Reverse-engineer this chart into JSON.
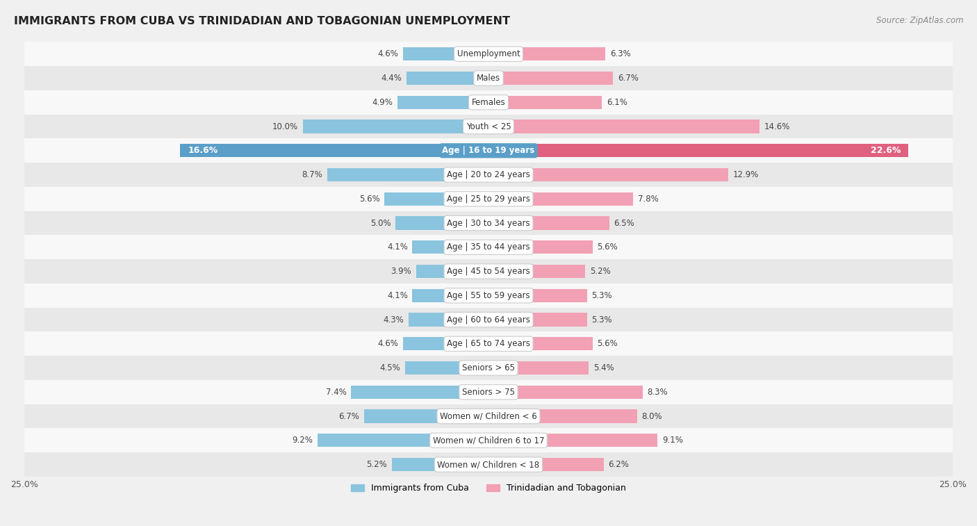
{
  "title": "IMMIGRANTS FROM CUBA VS TRINIDADIAN AND TOBAGONIAN UNEMPLOYMENT",
  "source": "Source: ZipAtlas.com",
  "categories": [
    "Unemployment",
    "Males",
    "Females",
    "Youth < 25",
    "Age | 16 to 19 years",
    "Age | 20 to 24 years",
    "Age | 25 to 29 years",
    "Age | 30 to 34 years",
    "Age | 35 to 44 years",
    "Age | 45 to 54 years",
    "Age | 55 to 59 years",
    "Age | 60 to 64 years",
    "Age | 65 to 74 years",
    "Seniors > 65",
    "Seniors > 75",
    "Women w/ Children < 6",
    "Women w/ Children 6 to 17",
    "Women w/ Children < 18"
  ],
  "cuba_values": [
    4.6,
    4.4,
    4.9,
    10.0,
    16.6,
    8.7,
    5.6,
    5.0,
    4.1,
    3.9,
    4.1,
    4.3,
    4.6,
    4.5,
    7.4,
    6.7,
    9.2,
    5.2
  ],
  "tt_values": [
    6.3,
    6.7,
    6.1,
    14.6,
    22.6,
    12.9,
    7.8,
    6.5,
    5.6,
    5.2,
    5.3,
    5.3,
    5.6,
    5.4,
    8.3,
    8.0,
    9.1,
    6.2
  ],
  "cuba_color": "#8ac4de",
  "tt_color": "#f2a0b4",
  "cuba_highlight_color": "#5b9fc9",
  "tt_highlight_color": "#e06080",
  "highlight_row": 4,
  "xlim": 25.0,
  "legend_cuba": "Immigrants from Cuba",
  "legend_tt": "Trinidadian and Tobagonian",
  "bg_color": "#f0f0f0",
  "row_bg_light": "#f8f8f8",
  "row_bg_dark": "#e8e8e8"
}
